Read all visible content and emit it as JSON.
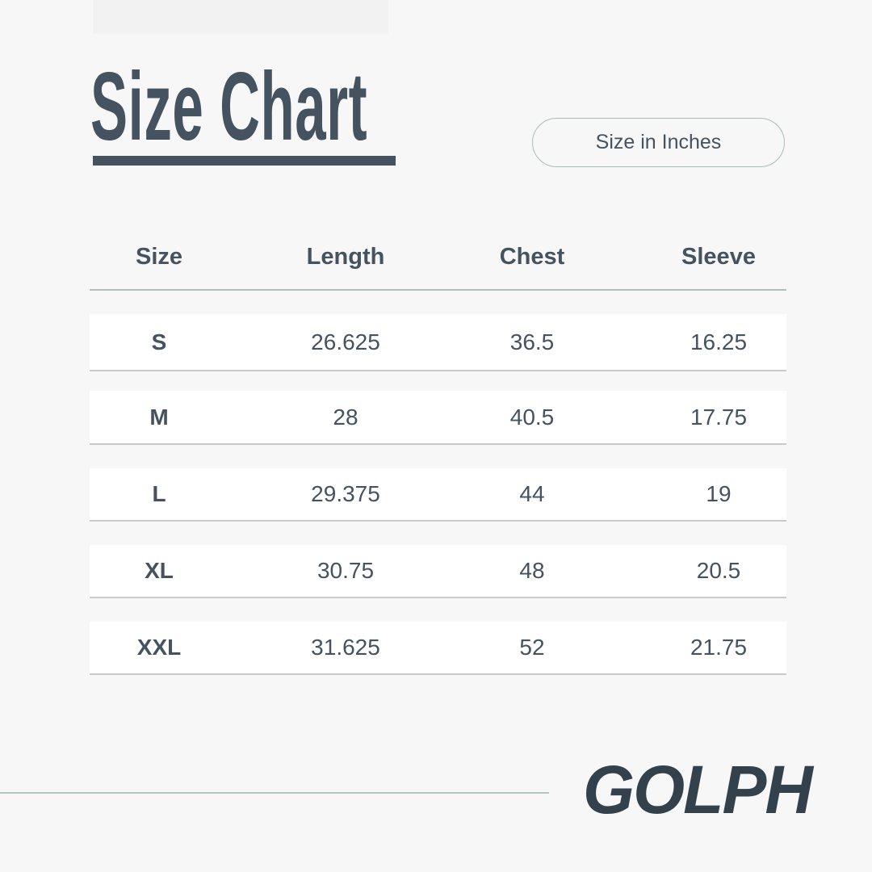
{
  "title": "Size Chart",
  "unit_label": "Size in Inches",
  "table": {
    "headers": [
      "Size",
      "Length",
      "Chest",
      "Sleeve"
    ],
    "rows": [
      [
        "S",
        "26.625",
        "36.5",
        "16.25"
      ],
      [
        "M",
        "28",
        "40.5",
        "17.75"
      ],
      [
        "L",
        "29.375",
        "44",
        "19"
      ],
      [
        "XL",
        "30.75",
        "48",
        "20.5"
      ],
      [
        "XXL",
        "31.625",
        "52",
        "21.75"
      ]
    ]
  },
  "brand": "GOLPH",
  "colors": {
    "text": "#45525f",
    "accent_line": "#b0c0b8",
    "logo": "#33414c",
    "background": "#f7f7f7"
  }
}
